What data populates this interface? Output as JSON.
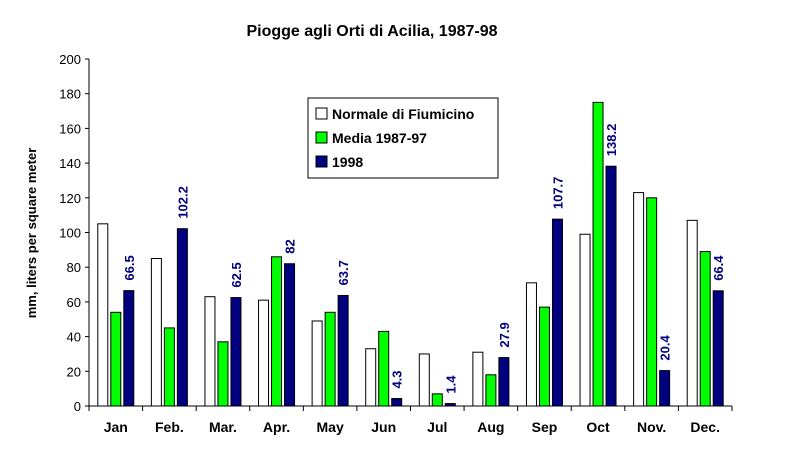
{
  "chart_data": {
    "type": "bar",
    "title": "Piogge agli Orti di Acilia, 1987-98",
    "xlabel": "",
    "ylabel": "mm, liters per square meter",
    "ylim": [
      0,
      200
    ],
    "yticks": [
      0,
      20,
      40,
      60,
      80,
      100,
      120,
      140,
      160,
      180,
      200
    ],
    "categories": [
      "Jan",
      "Feb.",
      "Mar.",
      "Apr.",
      "May",
      "Jun",
      "Jul",
      "Aug",
      "Sep",
      "Oct",
      "Nov.",
      "Dec."
    ],
    "series": [
      {
        "name": "Normale di Fiumicino",
        "color": "#ffffff",
        "values": [
          105,
          85,
          63,
          61,
          49,
          33,
          30,
          31,
          71,
          99,
          123,
          107
        ]
      },
      {
        "name": "Media 1987-97",
        "color": "#00ff00",
        "values": [
          54,
          45,
          37,
          86,
          54,
          43,
          7,
          18,
          57,
          175,
          120,
          89
        ]
      },
      {
        "name": "1998",
        "color": "#000080",
        "values": [
          66.5,
          102.2,
          62.5,
          82,
          63.7,
          4.3,
          1.4,
          27.9,
          107.7,
          138.2,
          20.4,
          66.4
        ]
      }
    ],
    "data_labels": [
      "66.5",
      "102.2",
      "62.5",
      "82",
      "63.7",
      "4.3",
      "1.4",
      "27.9",
      "107.7",
      "138.2",
      "20.4",
      "66.4"
    ],
    "legend_position": "top-center",
    "grid": false
  }
}
